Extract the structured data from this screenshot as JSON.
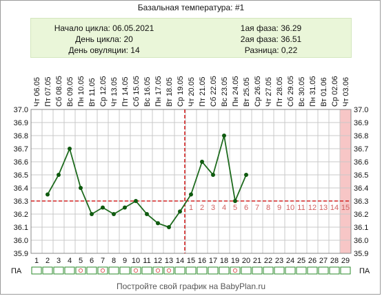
{
  "header": {
    "title": "Базальная температура: #1",
    "cycle_start": "Начало цикла: 06.05.2021",
    "cycle_day": "День цикла: 20",
    "ovulation_day": "День овуляции: 14",
    "phase1": "1ая фаза: 36.29",
    "phase2": "2ая фаза: 36.51",
    "difference": "Разница: 0,22"
  },
  "footer": {
    "text": "Постройте свой график на BabyPlan.ru"
  },
  "chart_data": {
    "type": "line",
    "title": "Базальная температура: #1",
    "x": [
      1,
      2,
      3,
      4,
      5,
      6,
      7,
      8,
      9,
      10,
      11,
      12,
      13,
      14,
      15,
      16,
      17,
      18,
      19,
      20,
      21,
      22,
      23,
      24,
      25,
      26,
      27,
      28,
      29
    ],
    "dates": [
      "Чт 06.05",
      "Пт 07.05",
      "Сб 08.05",
      "Вс 09.05",
      "Пн 10.05",
      "Вт 11.05",
      "Ср 12.05",
      "Чт 13.05",
      "Пт 14.05",
      "Сб 15.05",
      "Вс 16.05",
      "Пн 17.05",
      "Вт 18.05",
      "Ср 19.05",
      "Чт 20.05",
      "Пт 21.05",
      "Сб 22.05",
      "Вс 23.05",
      "Пн 24.05",
      "Вт 25.05",
      "Ср 26.05",
      "Чт 27.05",
      "Пт 28.05",
      "Сб 29.05",
      "Вс 30.05",
      "Пн 31.05",
      "Вт 01.06",
      "Ср 02.06",
      "Чт 03.06"
    ],
    "series": [
      {
        "values": [
          null,
          36.35,
          36.5,
          36.7,
          36.4,
          36.2,
          36.25,
          36.2,
          36.25,
          36.3,
          36.2,
          36.13,
          36.1,
          36.22,
          36.35,
          36.6,
          36.5,
          36.8,
          36.3,
          36.5,
          null,
          null,
          null,
          null,
          null,
          null,
          null,
          null,
          null
        ]
      }
    ],
    "ylim": [
      35.9,
      37.0
    ],
    "yticks": [
      "35.9",
      "36.0",
      "36.1",
      "36.2",
      "36.3",
      "36.4",
      "36.5",
      "36.6",
      "36.7",
      "36.8",
      "36.9",
      "37.0"
    ],
    "coverline": 36.3,
    "ovulation_day": 14,
    "luteal_days": [
      "1",
      "2",
      "3",
      "4",
      "5",
      "6",
      "7",
      "8",
      "9",
      "10",
      "11",
      "12",
      "13",
      "14",
      "15"
    ],
    "pa_label": "ПА",
    "pa_marked_days": [
      5,
      7,
      10,
      12,
      13,
      19
    ],
    "grid": true,
    "colors": {
      "line": "#1e6b1e",
      "marker": "#0f5a0f",
      "coverline": "#d42020",
      "luteal_text": "#d06060",
      "highlight": "#f7c6c6",
      "grid": "#c8c8c8"
    }
  }
}
